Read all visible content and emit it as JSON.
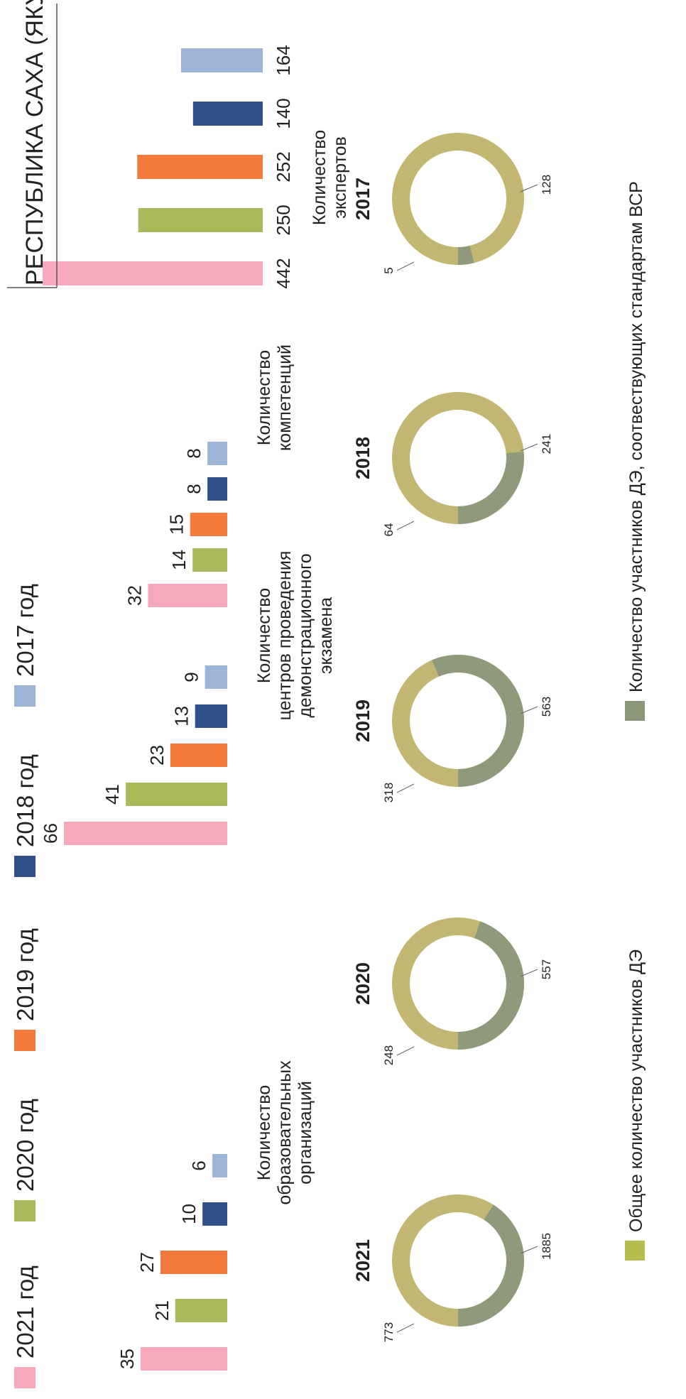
{
  "header": {
    "region_title": "РЕСПУБЛИКА САХА (ЯКУТИЯ)"
  },
  "legend_years": [
    {
      "label": "2021 год",
      "color": "#f7a8bb"
    },
    {
      "label": "2020 год",
      "color": "#a9b95b"
    },
    {
      "label": "2019 год",
      "color": "#f47a3c"
    },
    {
      "label": "2018 год",
      "color": "#2f5088"
    },
    {
      "label": "2017 год",
      "color": "#9db3d8"
    }
  ],
  "donut_legend": [
    {
      "label": "Общее количество участников ДЭ",
      "color": "#b6bd4e"
    },
    {
      "label": "Количество участников ДЭ, соотвествующих стандартам ВСР",
      "color": "#8a9879"
    }
  ],
  "chart_data": [
    {
      "type": "bar",
      "categories": [
        "2021 год",
        "2020 год",
        "2019 год",
        "2018 год",
        "2017 год"
      ],
      "values": [
        35,
        21,
        27,
        10,
        6
      ],
      "label_lines": [
        "Количество",
        "образовательных",
        "организаций"
      ],
      "ylim": [
        0,
        66
      ]
    },
    {
      "type": "bar",
      "categories": [
        "2021 год",
        "2020 год",
        "2019 год",
        "2018 год",
        "2017 год"
      ],
      "values": [
        66,
        41,
        23,
        13,
        9
      ],
      "label_lines": [
        "Количество",
        "центров проведения",
        "демонстрационного",
        "экзамена"
      ],
      "ylim": [
        0,
        66
      ]
    },
    {
      "type": "bar",
      "categories": [
        "2021 год",
        "2020 год",
        "2019 год",
        "2018 год",
        "2017 год"
      ],
      "values": [
        32,
        14,
        15,
        8,
        8
      ],
      "label_lines": [
        "Количество",
        "компетенций"
      ],
      "ylim": [
        0,
        66
      ]
    },
    {
      "type": "bar",
      "categories": [
        "2021 год",
        "2020 год",
        "2019 год",
        "2018 год",
        "2017 год"
      ],
      "values": [
        442,
        250,
        252,
        140,
        164
      ],
      "label_lines": [
        "Количество",
        "экспертов"
      ],
      "ylim": [
        0,
        442
      ]
    },
    {
      "type": "pie",
      "donuts": [
        {
          "year": "2021",
          "total": 1885,
          "vsr": 773
        },
        {
          "year": "2020",
          "total": 557,
          "vsr": 248
        },
        {
          "year": "2019",
          "total": 563,
          "vsr": 318
        },
        {
          "year": "2018",
          "total": 241,
          "vsr": 64
        },
        {
          "year": "2017",
          "total": 128,
          "vsr": 5
        }
      ]
    }
  ]
}
